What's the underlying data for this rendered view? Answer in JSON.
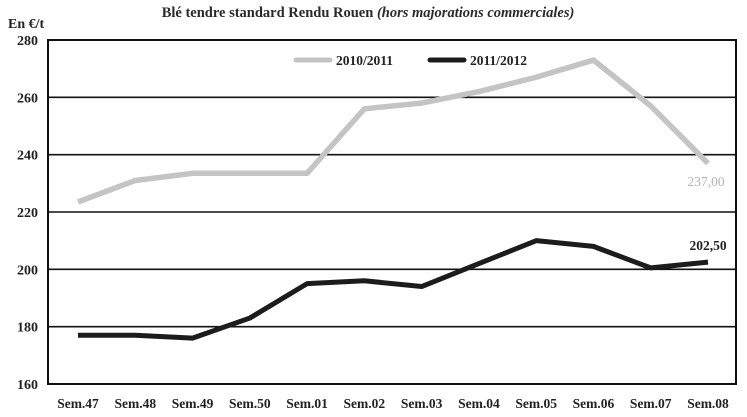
{
  "chart_data": {
    "type": "line",
    "title": "Blé tendre standard Rendu Rouen",
    "subtitle": "(hors majorations commerciales)",
    "ylabel": "En €/t",
    "xlabel": "",
    "categories": [
      "Sem.47",
      "Sem.48",
      "Sem.49",
      "Sem.50",
      "Sem.01",
      "Sem.02",
      "Sem.03",
      "Sem.04",
      "Sem.05",
      "Sem.06",
      "Sem.07",
      "Sem.08"
    ],
    "ylim": [
      160,
      280
    ],
    "yticks": [
      "160",
      "180",
      "200",
      "220",
      "240",
      "260",
      "280"
    ],
    "grid": true,
    "legend_position": "top",
    "series": [
      {
        "name": "2010/2011",
        "color": "#c4c4c4",
        "values": [
          223.5,
          231,
          233.5,
          233.5,
          233.5,
          256,
          258,
          262,
          267,
          273,
          257,
          237
        ],
        "end_label": "237,00"
      },
      {
        "name": "2011/2012",
        "color": "#1c1c1c",
        "values": [
          177,
          177,
          176,
          183,
          195,
          196,
          194,
          202,
          210,
          208,
          200.5,
          202.5
        ],
        "end_label": "202,50"
      }
    ]
  }
}
